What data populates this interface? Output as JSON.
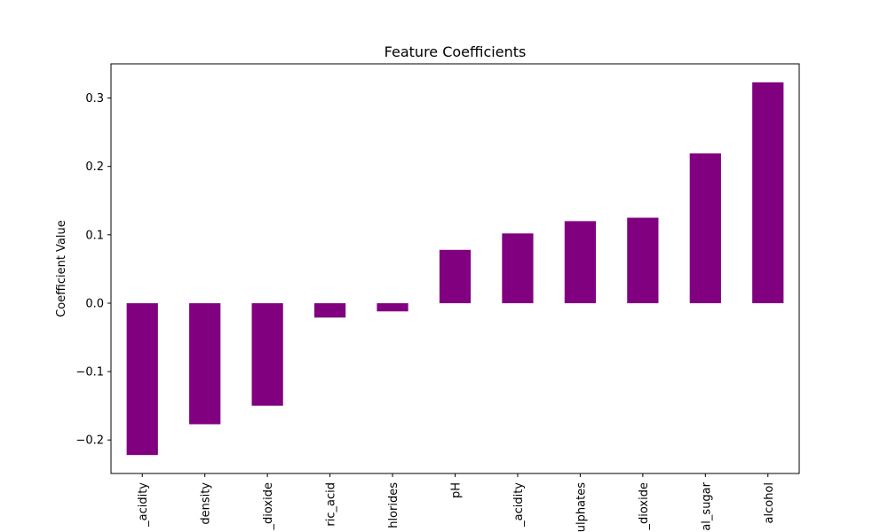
{
  "chart_data": {
    "type": "bar",
    "title": "Feature Coefficients",
    "xlabel": "",
    "ylabel": "Coefficient Value",
    "categories": [
      "_acidity",
      "density",
      "_dioxide",
      "ric_acid",
      "hlorides",
      "pH",
      "_acidity",
      "ulphates",
      "_dioxide",
      "al_sugar",
      "alcohol"
    ],
    "values": [
      -0.222,
      -0.177,
      -0.15,
      -0.021,
      -0.012,
      0.078,
      0.102,
      0.12,
      0.125,
      0.219,
      0.323
    ],
    "ylim": [
      -0.249,
      0.35
    ],
    "yticks": [
      -0.2,
      -0.1,
      0.0,
      0.1,
      0.2,
      0.3
    ],
    "ytick_labels": [
      "−0.2",
      "−0.1",
      "0.0",
      "0.1",
      "0.2",
      "0.3"
    ],
    "bar_color": "#800080",
    "grid": false,
    "legend": "none"
  }
}
